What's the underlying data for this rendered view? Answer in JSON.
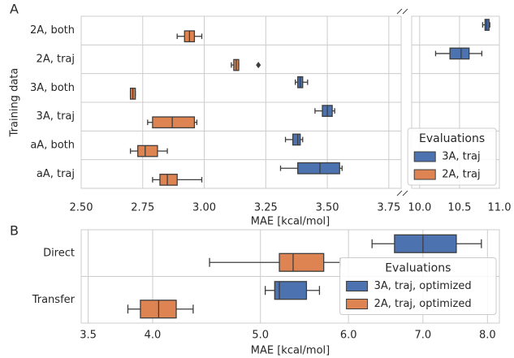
{
  "chart_data": [
    {
      "type": "box",
      "panel": "A",
      "xlabel": "MAE [kcal/mol]",
      "ylabel": "Training data",
      "categories": [
        "2A, both",
        "2A, traj",
        "3A, both",
        "3A, traj",
        "aA, both",
        "aA, traj"
      ],
      "xlim": [
        2.5,
        3.8
      ],
      "xticks": [
        {
          "value": 2.5,
          "label": "2.50"
        },
        {
          "value": 2.75,
          "label": "2.75"
        },
        {
          "value": 3.0,
          "label": "3.00"
        },
        {
          "value": 3.25,
          "label": "3.25"
        },
        {
          "value": 3.5,
          "label": "3.50"
        },
        {
          "value": 3.75,
          "label": "3.75"
        }
      ],
      "x2lim": [
        9.9,
        11.0
      ],
      "x2ticks": [
        {
          "value": 10.0,
          "label": "10.0"
        },
        {
          "value": 10.5,
          "label": "10.5"
        },
        {
          "value": 11.0,
          "label": "11.0"
        }
      ],
      "grid": true,
      "log_x": false,
      "legend_title": "Evaluations",
      "legend_loc": "lower right",
      "series": [
        {
          "name": "3A, traj",
          "color": "#4c72b0",
          "values": [
            [
              10.79,
              10.82,
              10.84,
              10.87,
              10.88
            ],
            [
              10.2,
              10.38,
              10.52,
              10.62,
              10.78
            ],
            [
              3.37,
              3.38,
              3.39,
              3.4,
              3.42
            ],
            [
              3.45,
              3.48,
              3.5,
              3.52,
              3.53
            ],
            [
              3.33,
              3.36,
              3.38,
              3.39,
              3.4
            ],
            [
              3.31,
              3.38,
              3.47,
              3.55,
              3.56
            ]
          ],
          "fliers": [
            [],
            [],
            [],
            [],
            [],
            []
          ]
        },
        {
          "name": "2A, traj",
          "color": "#dd8452",
          "values": [
            [
              2.89,
              2.92,
              2.94,
              2.96,
              2.99
            ],
            [
              3.11,
              3.12,
              3.13,
              3.14,
              3.14
            ],
            [
              2.7,
              2.7,
              2.71,
              2.72,
              2.72
            ],
            [
              2.77,
              2.79,
              2.87,
              2.96,
              2.97
            ],
            [
              2.7,
              2.73,
              2.76,
              2.81,
              2.85
            ],
            [
              2.79,
              2.82,
              2.85,
              2.89,
              2.99
            ]
          ],
          "fliers": [
            [],
            [
              3.22
            ],
            [],
            [],
            [],
            []
          ]
        }
      ]
    },
    {
      "type": "box",
      "panel": "B",
      "xlabel": "MAE [kcal/mol]",
      "categories": [
        "Direct",
        "Transfer"
      ],
      "xlim": [
        3.45,
        8.2
      ],
      "xticks": [
        {
          "value": 3.5,
          "label": "3.5"
        },
        {
          "value": 4.0,
          "label": "4.0"
        },
        {
          "value": 5.0,
          "label": "5.0"
        },
        {
          "value": 6.0,
          "label": "6.0"
        },
        {
          "value": 7.0,
          "label": "7.0"
        },
        {
          "value": 8.0,
          "label": "8.0"
        }
      ],
      "grid": true,
      "log_x": true,
      "legend_title": "Evaluations",
      "legend_loc": "center right",
      "series": [
        {
          "name": "3A, traj, optimized",
          "color": "#4c72b0",
          "values": [
            [
              6.3,
              6.6,
              7.0,
              7.5,
              7.9
            ],
            [
              5.05,
              5.15,
              5.2,
              5.5,
              5.65
            ]
          ],
          "fliers": [
            [],
            []
          ]
        },
        {
          "name": "2A, traj, optimized",
          "color": "#dd8452",
          "values": [
            [
              4.5,
              5.2,
              5.35,
              5.7,
              5.9
            ],
            [
              3.8,
              3.9,
              4.05,
              4.2,
              4.35
            ]
          ],
          "fliers": [
            [],
            []
          ]
        }
      ]
    }
  ]
}
